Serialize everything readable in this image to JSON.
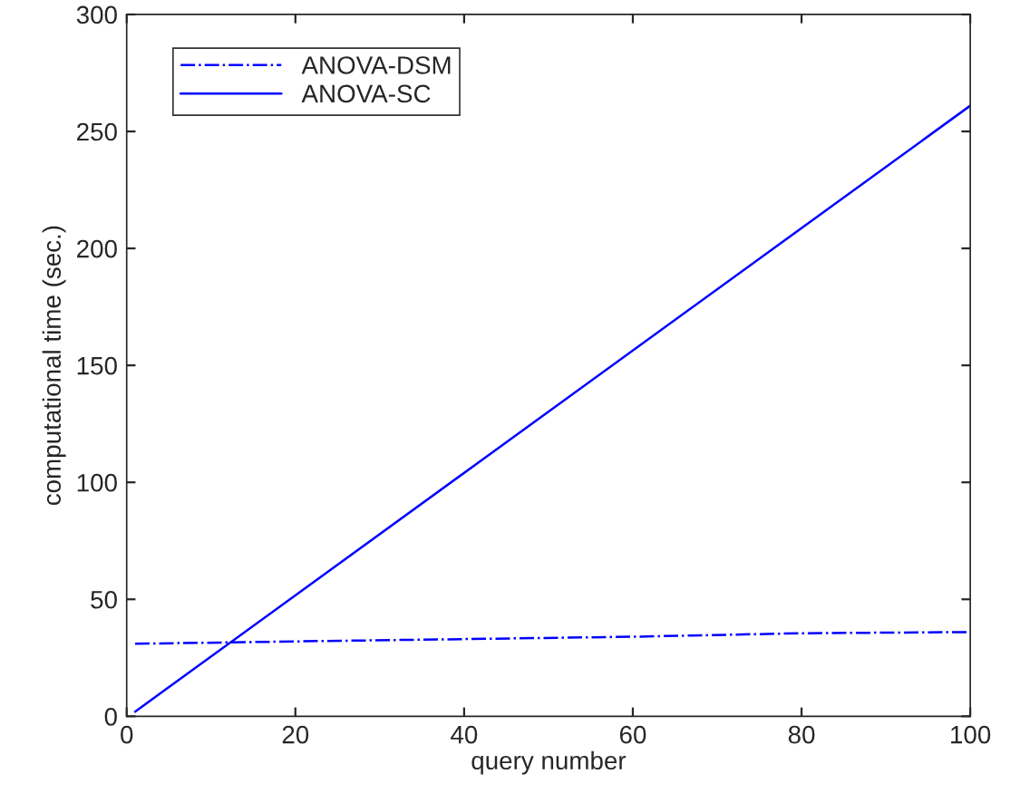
{
  "chart_data": {
    "type": "line",
    "xlabel": "query number",
    "ylabel": "computational time (sec.)",
    "xlim": [
      0,
      100
    ],
    "xticks": [
      0,
      20,
      40,
      60,
      80,
      100
    ],
    "ylim": [
      0,
      300
    ],
    "yticks": [
      0,
      50,
      100,
      150,
      200,
      250,
      300
    ],
    "grid": false,
    "legend": "top left",
    "marker": "none",
    "series": [
      {
        "name": "ANOVA-DSM",
        "color": "#0000ff",
        "line_style": "dashdot",
        "x": [
          1,
          20,
          40,
          60,
          80,
          100
        ],
        "values": [
          31,
          32,
          33,
          34,
          35.5,
          36
        ]
      },
      {
        "name": "ANOVA-SC",
        "color": "#0000ff",
        "line_style": "solid",
        "x": [
          1,
          100
        ],
        "values": [
          2,
          261
        ]
      }
    ]
  }
}
